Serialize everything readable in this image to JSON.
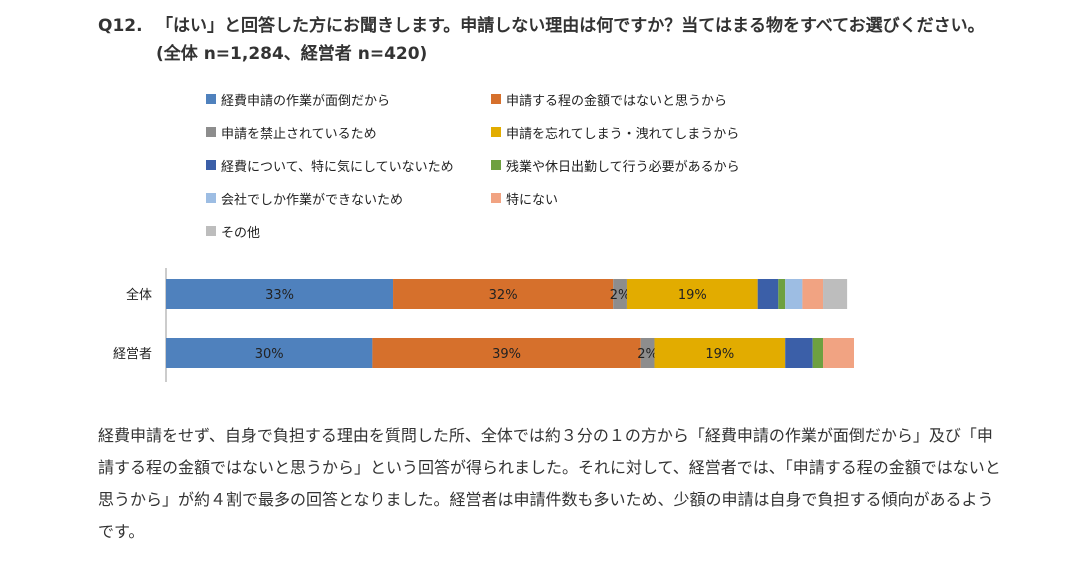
{
  "question": {
    "number": "Q12.",
    "text": "「はい」と回答した方にお聞きします。申請しない理由は何ですか？当てはまる物をすべてお選びください。(全体 n=1,284、経営者 n=420)"
  },
  "chart_data": {
    "type": "bar",
    "orientation": "horizontal",
    "stacked": true,
    "percent": true,
    "categories": [
      "全体",
      "経営者"
    ],
    "series": [
      {
        "name": "経費申請の作業が面倒だから",
        "color": "#4f81bd",
        "values": [
          33,
          30
        ],
        "labels": [
          "33%",
          "30%"
        ]
      },
      {
        "name": "申請する程の金額ではないと思うから",
        "color": "#d6702c",
        "values": [
          32,
          39
        ],
        "labels": [
          "32%",
          "39%"
        ]
      },
      {
        "name": "申請を禁止されているため",
        "color": "#8d8d8d",
        "values": [
          2,
          2
        ],
        "labels": [
          "2%",
          "2%"
        ]
      },
      {
        "name": "申請を忘れてしまう・洩れてしまうから",
        "color": "#e2ac00",
        "values": [
          19,
          19
        ],
        "labels": [
          "19%",
          "19%"
        ]
      },
      {
        "name": "経費について、特に気にしていないため",
        "color": "#3b5fa8",
        "values": [
          3,
          4
        ],
        "labels": [
          "",
          ""
        ]
      },
      {
        "name": "残業や休日出勤して行う必要があるから",
        "color": "#6ea040",
        "values": [
          1,
          1.5
        ],
        "labels": [
          "",
          ""
        ]
      },
      {
        "name": "会社でしか作業ができないため",
        "color": "#9dbde3",
        "values": [
          2.5,
          0
        ],
        "labels": [
          "",
          ""
        ]
      },
      {
        "name": "特にない",
        "color": "#f1a382",
        "values": [
          3,
          4.5
        ],
        "labels": [
          "",
          ""
        ]
      },
      {
        "name": "その他",
        "color": "#bdbdbd",
        "values": [
          3.5,
          0
        ],
        "labels": [
          "",
          ""
        ]
      }
    ],
    "xlim": [
      0,
      100
    ],
    "grid": false,
    "legend_position": "top"
  },
  "description": {
    "text": "経費申請をせず、自身で負担する理由を質問した所、全体では約３分の１の方から「経費申請の作業が面倒だから」及び「申請する程の金額ではないと思うから」という回答が得られました。それに対して、経営者では、「申請する程の金額ではないと思うから」が約４割で最多の回答となりました。経営者は申請件数も多いため、少額の申請は自身で負担する傾向があるようです。"
  }
}
